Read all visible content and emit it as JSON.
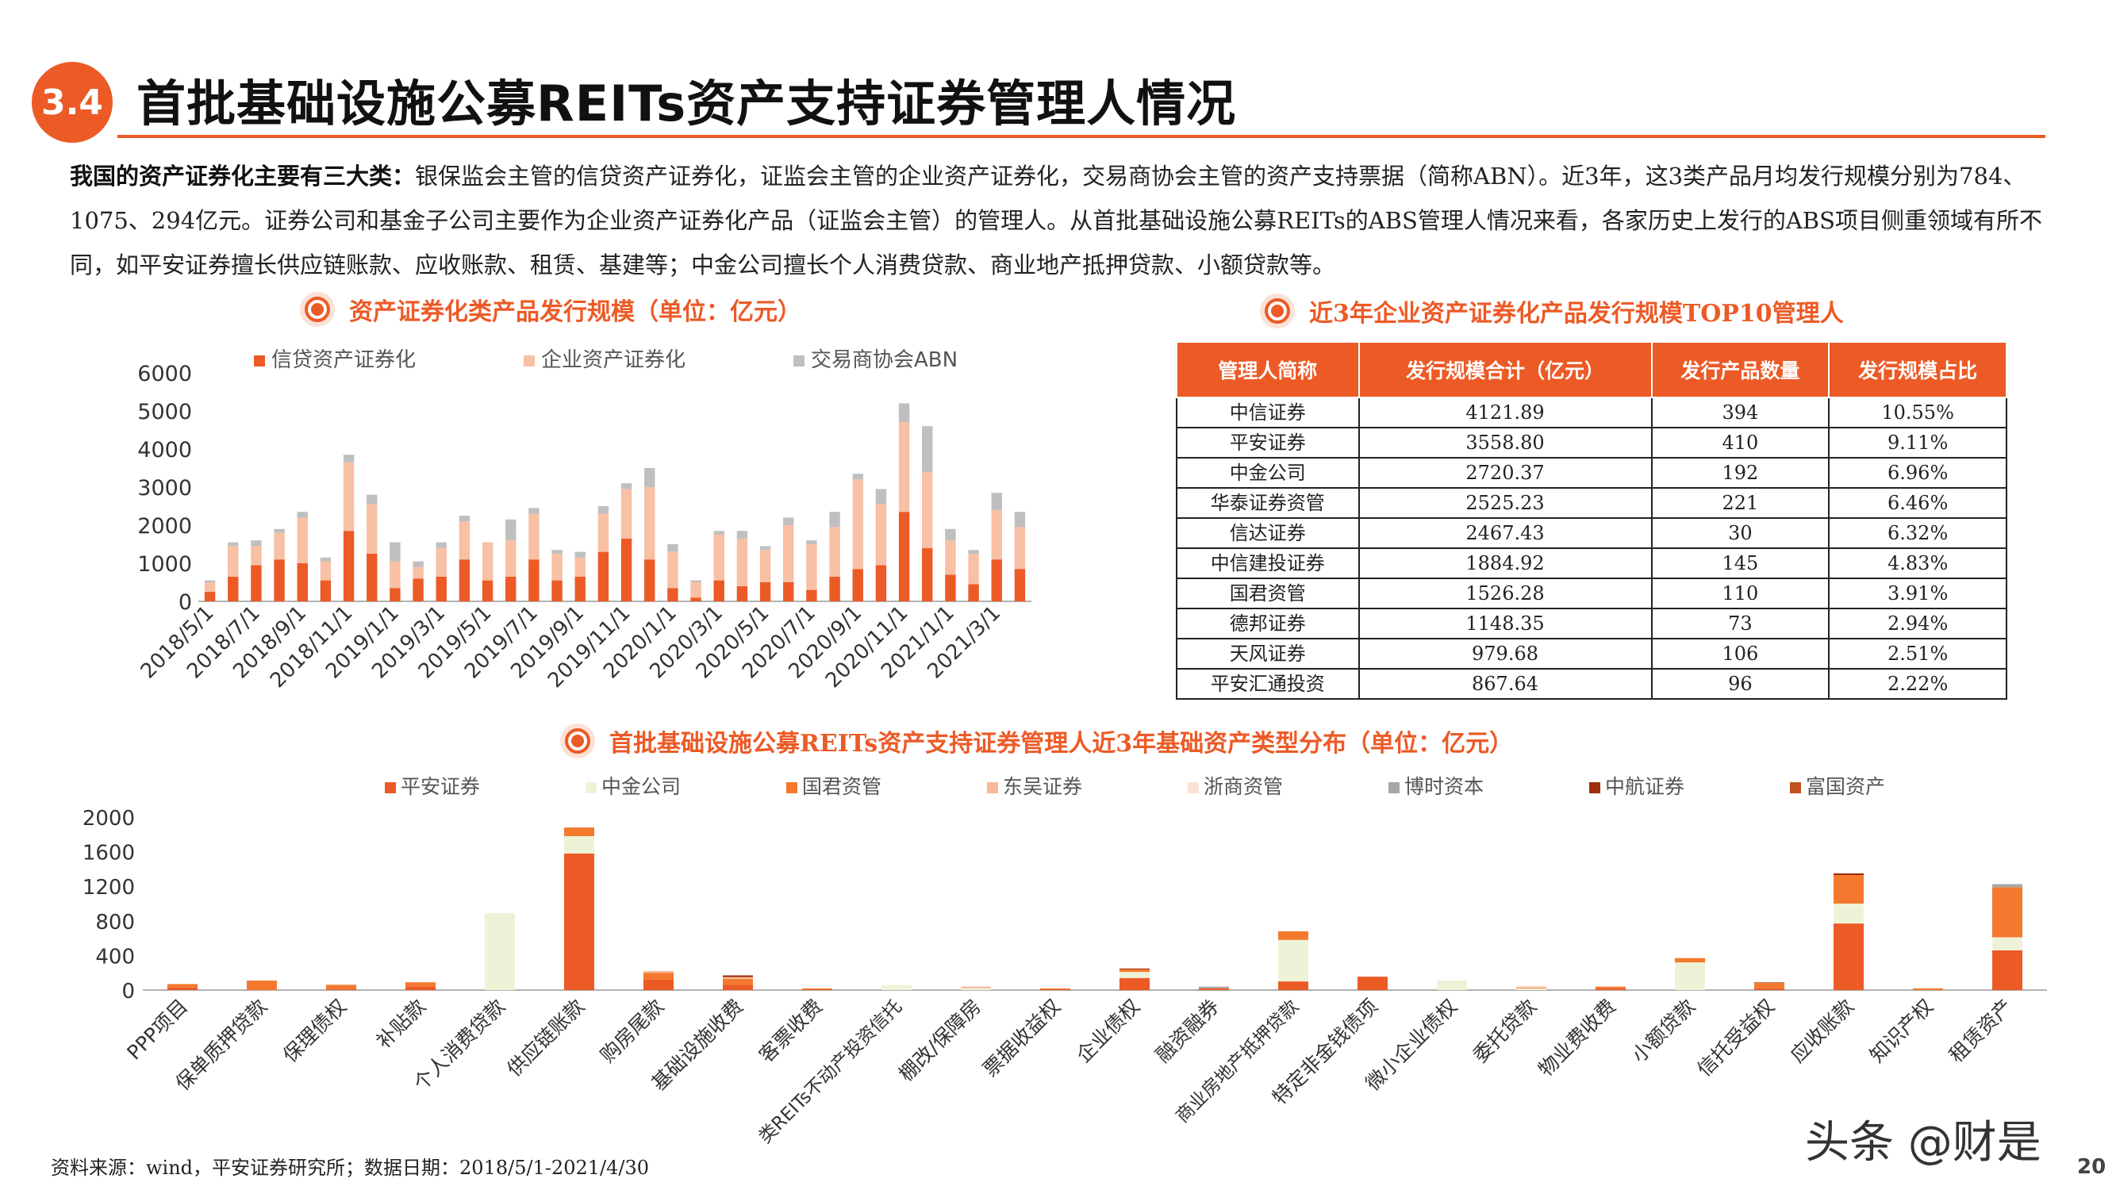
{
  "header": {
    "section_number": "3.4",
    "title": "首批基础设施公募REITs资产支持证券管理人情况"
  },
  "intro": {
    "lead": "我国的资产证券化主要有三大类：",
    "body": "银保监会主管的信贷资产证券化，证监会主管的企业资产证券化，交易商协会主管的资产支持票据（简称ABN）。近3年，这3类产品月均发行规模分别为784、1075、294亿元。证券公司和基金子公司主要作为企业资产证券化产品（证监会主管）的管理人。从首批基础设施公募REITs的ABS管理人情况来看，各家历史上发行的ABS项目侧重领域有所不同，如平安证券擅长供应链账款、应收账款、租赁、基建等；中金公司擅长个人消费贷款、商业地产抵押贷款、小额贷款等。"
  },
  "colors": {
    "accent": "#ec5a26",
    "series1": "#ec5a26",
    "series2": "#f8c0a4",
    "series3": "#bfbfbf"
  },
  "chart_data": [
    {
      "type": "bar",
      "stacked": true,
      "title": "资产证券化类产品发行规模（单位：亿元）",
      "legend_position": "top",
      "ylim": [
        0,
        6000
      ],
      "yticks": [
        "6000",
        "5000",
        "4000",
        "3000",
        "2000",
        "1000",
        "0"
      ],
      "xtick_labels": [
        "2018/5/1",
        "2018/7/1",
        "2018/9/1",
        "2018/11/1",
        "2019/1/1",
        "2019/3/1",
        "2019/5/1",
        "2019/7/1",
        "2019/9/1",
        "2019/11/1",
        "2020/1/1",
        "2020/3/1",
        "2020/5/1",
        "2020/7/1",
        "2020/9/1",
        "2020/11/1",
        "2021/1/1",
        "2021/3/1"
      ],
      "series": [
        {
          "name": "信贷资产证券化",
          "values": [
            250,
            650,
            950,
            1100,
            1000,
            550,
            1850,
            1250,
            350,
            600,
            650,
            1100,
            550,
            650,
            1100,
            550,
            650,
            1300,
            1650,
            1100,
            350,
            100,
            550,
            400,
            500,
            500,
            300,
            650,
            850,
            950,
            2350,
            1400,
            700,
            450,
            1100,
            850
          ]
        },
        {
          "name": "企业资产证券化",
          "values": [
            250,
            800,
            500,
            700,
            1200,
            500,
            1800,
            1300,
            700,
            300,
            750,
            1000,
            1000,
            950,
            1200,
            700,
            500,
            1000,
            1300,
            1900,
            950,
            400,
            1200,
            1250,
            850,
            1500,
            1200,
            1300,
            2350,
            1600,
            2350,
            2000,
            900,
            800,
            1300,
            1100
          ]
        },
        {
          "name": "交易商协会ABN",
          "values": [
            50,
            100,
            150,
            100,
            150,
            100,
            200,
            250,
            500,
            150,
            150,
            150,
            0,
            550,
            150,
            100,
            150,
            200,
            150,
            500,
            200,
            50,
            100,
            200,
            100,
            200,
            100,
            400,
            150,
            400,
            500,
            1200,
            300,
            100,
            450,
            400
          ]
        }
      ]
    },
    {
      "type": "table",
      "title": "近3年企业资产证券化产品发行规模TOP10管理人",
      "columns": [
        "管理人简称",
        "发行规模合计（亿元）",
        "发行产品数量",
        "发行规模占比"
      ],
      "rows": [
        [
          "中信证券",
          "4121.89",
          "394",
          "10.55%"
        ],
        [
          "平安证券",
          "3558.80",
          "410",
          "9.11%"
        ],
        [
          "中金公司",
          "2720.37",
          "192",
          "6.96%"
        ],
        [
          "华泰证券资管",
          "2525.23",
          "221",
          "6.46%"
        ],
        [
          "信达证券",
          "2467.43",
          "30",
          "6.32%"
        ],
        [
          "中信建投证券",
          "1884.92",
          "145",
          "4.83%"
        ],
        [
          "国君资管",
          "1526.28",
          "110",
          "3.91%"
        ],
        [
          "德邦证券",
          "1148.35",
          "73",
          "2.94%"
        ],
        [
          "天风证券",
          "979.68",
          "106",
          "2.51%"
        ],
        [
          "平安汇通投资",
          "867.64",
          "96",
          "2.22%"
        ]
      ]
    },
    {
      "type": "bar",
      "stacked": true,
      "title": "首批基础设施公募REITs资产支持证券管理人近3年基础资产类型分布（单位：亿元）",
      "legend_position": "top",
      "ylim": [
        0,
        2000
      ],
      "yticks": [
        "2000",
        "1600",
        "1200",
        "800",
        "400",
        "0"
      ],
      "categories": [
        "PPP项目",
        "保单质押贷款",
        "保理债权",
        "补贴款",
        "个人消费贷款",
        "供应链账款",
        "购房尾款",
        "基础设施收费",
        "客票收费",
        "类REITs不动产投资信托",
        "棚改/保障房",
        "票据收益权",
        "企业债权",
        "融资融券",
        "商业房地产抵押贷款",
        "特定非金钱债项",
        "微小企业债权",
        "委托贷款",
        "物业费收费",
        "小额贷款",
        "信托受益权",
        "应收账款",
        "知识产权",
        "租赁资产"
      ],
      "series": [
        {
          "name": "平安证券",
          "values": [
            30,
            0,
            10,
            40,
            0,
            1580,
            120,
            60,
            10,
            0,
            0,
            10,
            140,
            20,
            100,
            155,
            0,
            0,
            20,
            0,
            20,
            770,
            0,
            460
          ]
        },
        {
          "name": "中金公司",
          "values": [
            0,
            0,
            0,
            0,
            890,
            200,
            0,
            0,
            0,
            60,
            20,
            0,
            70,
            0,
            480,
            0,
            110,
            20,
            0,
            320,
            0,
            230,
            0,
            150
          ]
        },
        {
          "name": "国君资管",
          "values": [
            40,
            110,
            50,
            50,
            0,
            100,
            80,
            70,
            10,
            0,
            0,
            10,
            30,
            0,
            100,
            0,
            0,
            10,
            20,
            50,
            60,
            330,
            20,
            580
          ]
        },
        {
          "name": "东吴证券",
          "values": [
            0,
            0,
            0,
            0,
            0,
            0,
            20,
            20,
            0,
            0,
            20,
            0,
            0,
            0,
            0,
            0,
            0,
            0,
            0,
            0,
            0,
            0,
            0,
            0
          ]
        },
        {
          "name": "浙商资管",
          "values": [
            0,
            0,
            10,
            0,
            0,
            0,
            0,
            0,
            0,
            0,
            0,
            0,
            0,
            0,
            0,
            0,
            0,
            20,
            0,
            0,
            0,
            0,
            0,
            0
          ]
        },
        {
          "name": "博时资本",
          "values": [
            0,
            0,
            0,
            0,
            0,
            0,
            0,
            0,
            0,
            0,
            0,
            0,
            0,
            20,
            0,
            0,
            0,
            0,
            0,
            0,
            0,
            0,
            0,
            35
          ]
        },
        {
          "name": "中航证券",
          "values": [
            0,
            0,
            0,
            0,
            0,
            0,
            0,
            20,
            0,
            0,
            0,
            0,
            10,
            0,
            0,
            0,
            0,
            0,
            0,
            0,
            0,
            20,
            0,
            0
          ]
        },
        {
          "name": "富国资产",
          "values": [
            0,
            0,
            0,
            0,
            0,
            0,
            0,
            0,
            0,
            0,
            0,
            0,
            0,
            0,
            0,
            0,
            0,
            0,
            0,
            0,
            10,
            0,
            0,
            0
          ]
        }
      ]
    }
  ],
  "chart2_colors": [
    "#ec5a26",
    "#eef3d8",
    "#f4792e",
    "#f8b898",
    "#fce2d4",
    "#a6a6a6",
    "#9e2f0a",
    "#c0501e"
  ],
  "footer": {
    "source": "资料来源：wind，平安证券研究所；数据日期：2018/5/1-2021/4/30",
    "page_number": "20",
    "watermark": "头条 @财是"
  }
}
